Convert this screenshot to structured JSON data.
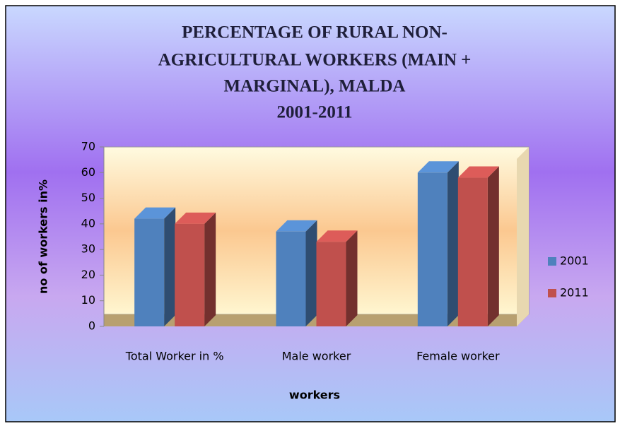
{
  "chart_data": {
    "type": "bar",
    "title": [
      "PERCENTAGE OF RURAL  NON-",
      "AGRICULTURAL WORKERS (MAIN +",
      "MARGINAL), MALDA",
      "2001-2011"
    ],
    "x_label": "workers",
    "y_label": "no of workers in%",
    "categories": [
      "Total Worker in %",
      "Male worker",
      "Female worker"
    ],
    "series": [
      {
        "name": "2001",
        "color": "#4f81bd",
        "values": [
          42,
          37,
          60
        ]
      },
      {
        "name": "2011",
        "color": "#c0504d",
        "values": [
          40,
          33,
          58
        ]
      }
    ],
    "ylim": [
      0,
      70
    ],
    "yticks": [
      0,
      10,
      20,
      30,
      40,
      50,
      60,
      70
    ],
    "legend": "right"
  }
}
